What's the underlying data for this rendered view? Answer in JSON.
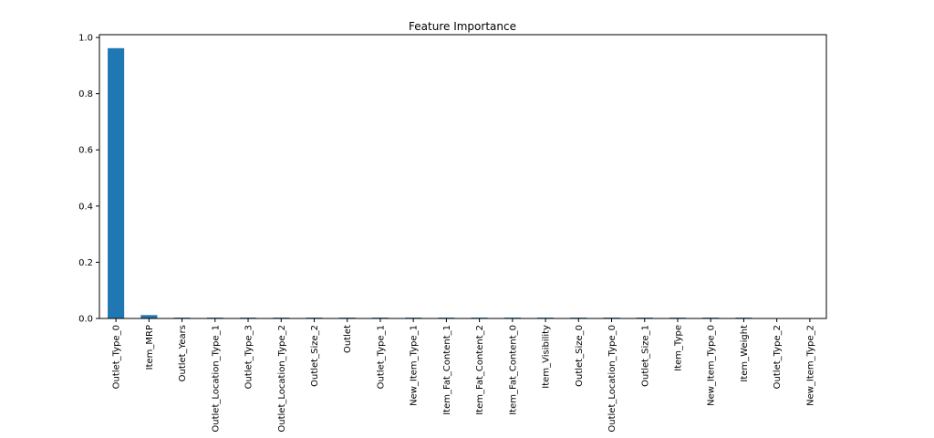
{
  "chart_data": {
    "type": "bar",
    "title": "Feature Importance",
    "categories": [
      "Outlet_Type_0",
      "Item_MRP",
      "Outlet_Years",
      "Outlet_Location_Type_1",
      "Outlet_Type_3",
      "Outlet_Location_Type_2",
      "Outlet_Size_2",
      "Outlet",
      "Outlet_Type_1",
      "New_Item_Type_1",
      "Item_Fat_Content_1",
      "Item_Fat_Content_2",
      "Item_Fat_Content_0",
      "Item_Visibility",
      "Outlet_Size_0",
      "Outlet_Location_Type_0",
      "Outlet_Size_1",
      "Item_Type",
      "New_Item_Type_0",
      "Item_Weight",
      "Outlet_Type_2",
      "New_Item_Type_2"
    ],
    "values": [
      0.962,
      0.012,
      0.003,
      0.003,
      0.003,
      0.003,
      0.003,
      0.003,
      0.003,
      0.003,
      0.003,
      0.003,
      0.003,
      0.003,
      0.003,
      0.003,
      0.003,
      0.003,
      0.003,
      0.003,
      0.0005,
      0.0005
    ],
    "color": "#1f77b4",
    "ylim": [
      0,
      1.01
    ],
    "yticks": [
      {
        "value": 0,
        "label": "0.0"
      },
      0.2,
      0.4,
      0.6,
      0.8,
      {
        "value": 1,
        "label": "1.0"
      }
    ],
    "grid": false
  }
}
